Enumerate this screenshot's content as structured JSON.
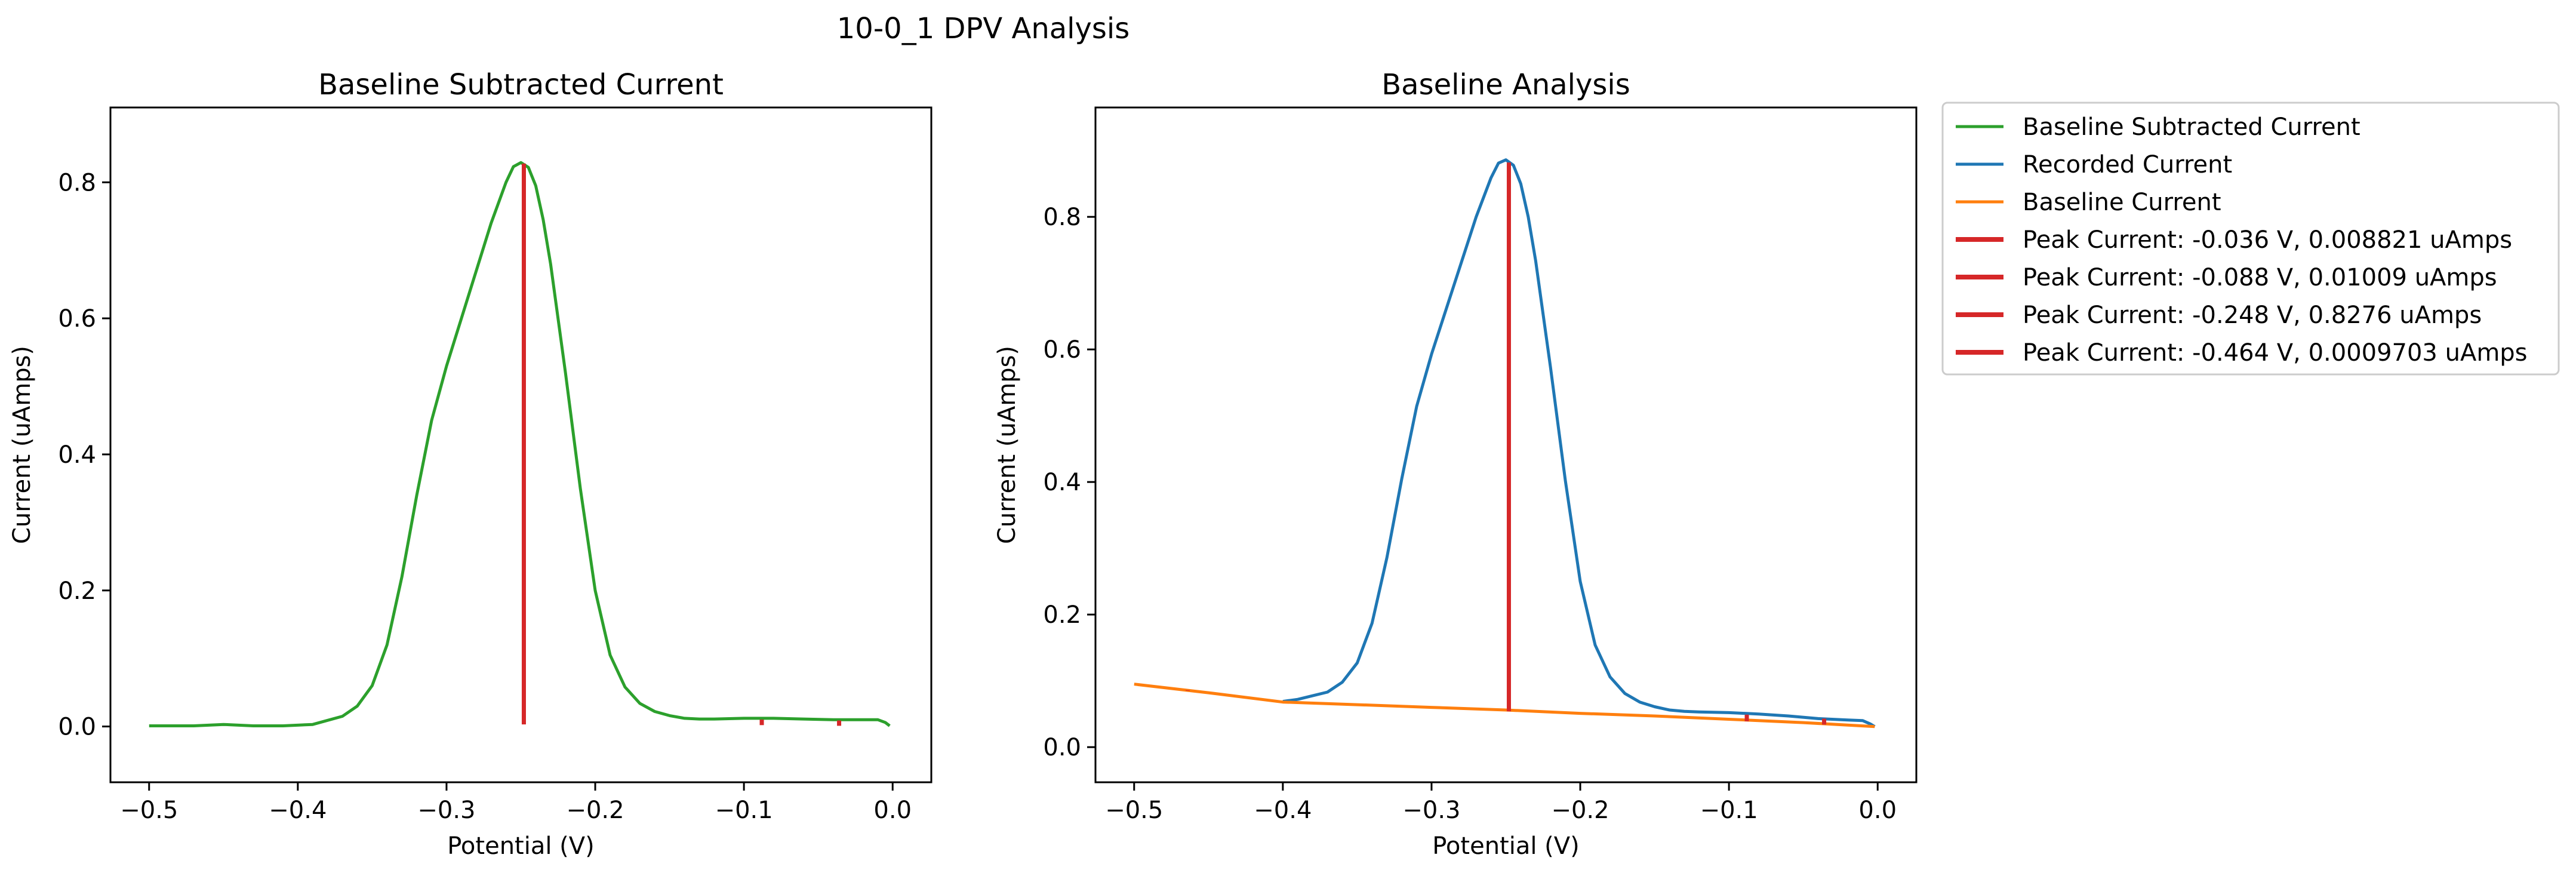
{
  "figure": {
    "suptitle": "10-0_1 DPV Analysis"
  },
  "colors": {
    "green": "#2ca02c",
    "blue": "#1f77b4",
    "orange": "#ff7f0e",
    "red": "#d62728"
  },
  "chart_data": [
    {
      "type": "line",
      "title": "Baseline Subtracted Current",
      "xlabel": "Potential (V)",
      "ylabel": "Current (uAmps)",
      "xlim": [
        -0.526,
        0.026
      ],
      "ylim": [
        -0.082,
        0.91
      ],
      "xticks": [
        -0.5,
        -0.4,
        -0.3,
        -0.2,
        -0.1,
        0.0
      ],
      "xtick_labels": [
        "−0.5",
        "−0.4",
        "−0.3",
        "−0.2",
        "−0.1",
        "0.0"
      ],
      "yticks": [
        0.0,
        0.2,
        0.4,
        0.6,
        0.8
      ],
      "ytick_labels": [
        "0.0",
        "0.2",
        "0.4",
        "0.6",
        "0.8"
      ],
      "grid": false,
      "series": [
        {
          "name": "Baseline Subtracted Current",
          "color": "#2ca02c",
          "x": [
            -0.5,
            -0.47,
            -0.45,
            -0.43,
            -0.41,
            -0.39,
            -0.37,
            -0.36,
            -0.35,
            -0.34,
            -0.33,
            -0.32,
            -0.31,
            -0.3,
            -0.29,
            -0.28,
            -0.27,
            -0.26,
            -0.255,
            -0.25,
            -0.245,
            -0.24,
            -0.235,
            -0.23,
            -0.22,
            -0.21,
            -0.2,
            -0.19,
            -0.18,
            -0.17,
            -0.16,
            -0.15,
            -0.14,
            -0.13,
            -0.12,
            -0.1,
            -0.08,
            -0.06,
            -0.04,
            -0.02,
            -0.01,
            -0.005,
            -0.002
          ],
          "y": [
            0.001,
            0.001,
            0.003,
            0.001,
            0.001,
            0.003,
            0.015,
            0.03,
            0.06,
            0.12,
            0.22,
            0.34,
            0.45,
            0.53,
            0.6,
            0.67,
            0.74,
            0.8,
            0.823,
            0.829,
            0.822,
            0.795,
            0.745,
            0.68,
            0.52,
            0.35,
            0.2,
            0.105,
            0.058,
            0.034,
            0.022,
            0.016,
            0.012,
            0.011,
            0.011,
            0.012,
            0.012,
            0.011,
            0.01,
            0.01,
            0.01,
            0.006,
            0.001
          ]
        }
      ],
      "peaks": [
        {
          "x": -0.036,
          "y0": 0.001,
          "y1": 0.0088
        },
        {
          "x": -0.088,
          "y0": 0.002,
          "y1": 0.0101
        },
        {
          "x": -0.248,
          "y0": 0.003,
          "y1": 0.8276
        },
        {
          "x": -0.464,
          "y0": 0.001,
          "y1": 0.001
        }
      ]
    },
    {
      "type": "line",
      "title": "Baseline Analysis",
      "xlabel": "Potential (V)",
      "ylabel": "Current (uAmps)",
      "xlim": [
        -0.526,
        0.026
      ],
      "ylim": [
        -0.053,
        0.965
      ],
      "xticks": [
        -0.5,
        -0.4,
        -0.3,
        -0.2,
        -0.1,
        0.0
      ],
      "xtick_labels": [
        "−0.5",
        "−0.4",
        "−0.3",
        "−0.2",
        "−0.1",
        "0.0"
      ],
      "yticks": [
        0.0,
        0.2,
        0.4,
        0.6,
        0.8
      ],
      "ytick_labels": [
        "0.0",
        "0.2",
        "0.4",
        "0.6",
        "0.8"
      ],
      "grid": false,
      "series": [
        {
          "name": "Recorded Current",
          "color": "#1f77b4",
          "x": [
            -0.4,
            -0.39,
            -0.37,
            -0.36,
            -0.35,
            -0.34,
            -0.33,
            -0.32,
            -0.31,
            -0.3,
            -0.29,
            -0.28,
            -0.27,
            -0.26,
            -0.255,
            -0.25,
            -0.245,
            -0.24,
            -0.235,
            -0.23,
            -0.22,
            -0.21,
            -0.2,
            -0.19,
            -0.18,
            -0.17,
            -0.16,
            -0.15,
            -0.14,
            -0.13,
            -0.12,
            -0.1,
            -0.08,
            -0.06,
            -0.04,
            -0.02,
            -0.01,
            -0.005,
            -0.002
          ],
          "y": [
            0.069,
            0.072,
            0.083,
            0.098,
            0.127,
            0.187,
            0.286,
            0.405,
            0.514,
            0.593,
            0.662,
            0.731,
            0.8,
            0.859,
            0.881,
            0.886,
            0.878,
            0.85,
            0.8,
            0.734,
            0.573,
            0.402,
            0.25,
            0.154,
            0.106,
            0.081,
            0.068,
            0.061,
            0.056,
            0.054,
            0.053,
            0.052,
            0.05,
            0.047,
            0.043,
            0.041,
            0.04,
            0.035,
            0.031
          ]
        },
        {
          "name": "Baseline Current",
          "color": "#ff7f0e",
          "x": [
            -0.5,
            -0.45,
            -0.4,
            -0.35,
            -0.3,
            -0.25,
            -0.2,
            -0.15,
            -0.1,
            -0.05,
            -0.002
          ],
          "y": [
            0.095,
            0.082,
            0.068,
            0.064,
            0.06,
            0.056,
            0.051,
            0.047,
            0.042,
            0.037,
            0.031
          ]
        }
      ],
      "peaks": [
        {
          "x": -0.036,
          "y0": 0.034,
          "y1": 0.043
        },
        {
          "x": -0.088,
          "y0": 0.039,
          "y1": 0.049
        },
        {
          "x": -0.248,
          "y0": 0.054,
          "y1": 0.882
        },
        {
          "x": -0.464,
          "y0": 0.085,
          "y1": 0.086
        }
      ]
    }
  ],
  "legend": {
    "placement": "outside-right-top",
    "entries": [
      {
        "label": "Baseline Subtracted Current",
        "color": "#2ca02c"
      },
      {
        "label": "Recorded Current",
        "color": "#1f77b4"
      },
      {
        "label": "Baseline Current",
        "color": "#ff7f0e"
      },
      {
        "label": "Peak Current: -0.036 V, 0.008821 uAmps",
        "color": "#d62728"
      },
      {
        "label": "Peak Current: -0.088 V, 0.01009 uAmps",
        "color": "#d62728"
      },
      {
        "label": "Peak Current: -0.248 V, 0.8276 uAmps",
        "color": "#d62728"
      },
      {
        "label": "Peak Current: -0.464 V, 0.0009703 uAmps",
        "color": "#d62728"
      }
    ]
  }
}
